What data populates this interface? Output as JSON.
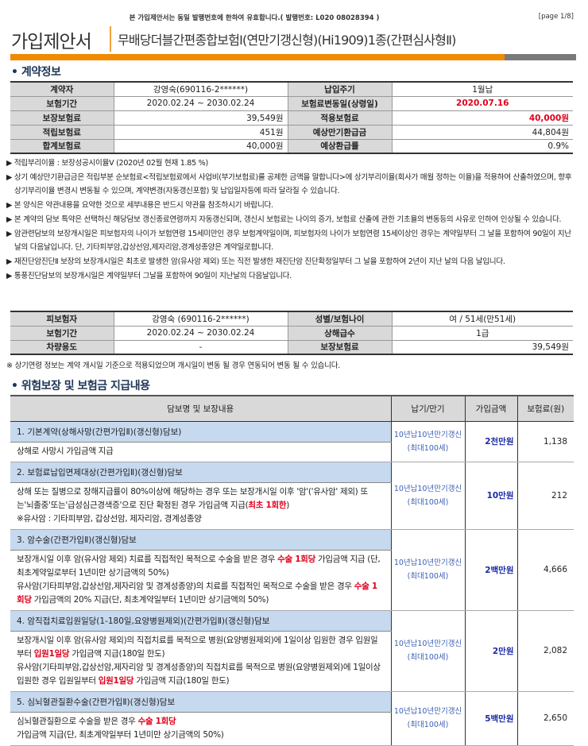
{
  "header": {
    "notice": "본 가입제안서는 동일 발행번호에 한하여 유효합니다.( 발행번호: L020 08028394 )",
    "page": "[page 1/8]",
    "doc_title": "가입제안서",
    "product": "무배당더블간편종합보험Ⅰ(연만기갱신형)(Hi1909)1종(간편심사형Ⅱ)"
  },
  "colors": {
    "accent_orange": "#f08a00",
    "gray_bar": "#7a7a7a",
    "highlight_red": "#e0001b",
    "title_row_blue": "#c6d9ef",
    "amount_blue": "#1b2aa6"
  },
  "contract": {
    "section_title": "• 계약정보",
    "rows": [
      {
        "l1": "계약자",
        "v1": "강영숙(690116-2******)",
        "l2": "납입주기",
        "v2": "1월납"
      },
      {
        "l1": "보험기간",
        "v1": "2020.02.24 ~ 2030.02.24",
        "l2": "보험료변동일(상령일)",
        "v2": "2020.07.16"
      },
      {
        "l1": "보장보험료",
        "v1": "39,549원",
        "l2": "적용보험료",
        "v2": "40,000원"
      },
      {
        "l1": "적립보험료",
        "v1": "451원",
        "l2": "예상만기환급금",
        "v2": "44,804원"
      },
      {
        "l1": "합계보험료",
        "v1": "40,000원",
        "l2": "예상환급률",
        "v2": "0.9%"
      }
    ]
  },
  "notes": [
    "▶ 적립부리이율 : 보장성공시이율Ⅴ (2020년 02월 현재 1.85 %)",
    "▶ 상기 예상만기환급금은 적립부분 순보험료<적립보험료에서 사업비(부가보험료)를 공제한 금액을 말합니다>에 상기부리이율(회사가 매월 정하는 이율)을 적용하여 산출하였으며, 향후 상기부리이율 변경시 변동될 수 있으며, 계약변경(자동갱신포함) 및 납입일자등에 따라 달라질 수 있습니다.",
    "▶ 본 양식은 약관내용을 요약한 것으로 세부내용은 반드시 약관을 참조하시기 바랍니다.",
    "▶ 본 계약의 담보 특약은 선택하신 해당담보 갱신종료연령까지 자동갱신되며, 갱신시 보험료는 나이의 증가, 보험료 산출에 관한 기초율의 변동등의 사유로 인하여 인상될 수 있습니다.",
    "▶ 암관련담보의 보장개시일은 피보험자의 나이가 보험연령 15세미만인 경우 보험계약일이며, 피보험자의 나이가 보험연령 15세이상인 경우는 계약일부터 그 날을 포함하여 90일이 지난날의 다음날입니다. 단, 기타피부암,갑상선암,제자리암,경계성종양은 계약일로합니다.",
    "▶ 재진단암진단Ⅱ 보장의 보장개시일은 최초로 발생한 암(유사암 제외) 또는 직전 발생한 재진단암 진단확정일부터 그 날을 포함하여 2년이 지난 날의 다음 날입니다.",
    "▶ 통풍진단담보의 보장개시일은 계약일부터 그날을 포함하여 90일이 지난날의 다음날입니다."
  ],
  "insured": {
    "rows": [
      {
        "l1": "피보험자",
        "v1": "강영숙 (690116-2******)",
        "l2": "성별/보험나이",
        "v2": "여 / 51세(만51세)"
      },
      {
        "l1": "보험기간",
        "v1": "2020.02.24 ~ 2030.02.24",
        "l2": "상해급수",
        "v2": "1급"
      },
      {
        "l1": "차량용도",
        "v1": "-",
        "l2": "보장보험료",
        "v2": "39,549원"
      }
    ],
    "note": "※ 상기연령 정보는 계약 개시일 기준으로 적용되었으며 개시일이 변동 될 경우 연동되어 변동 될 수 있습니다."
  },
  "coverage": {
    "section_title": "• 위험보장 및 보험금 지급내용",
    "headers": [
      "담보명 및 보장내용",
      "납기/만기",
      "가입금액",
      "보험료(원)"
    ],
    "items": [
      {
        "title": "1.  기본계약(상해사망(간편가입Ⅱ)(갱신형)담보)",
        "term": "10년납10년만기갱신(최대100세)",
        "amount": "2천만원",
        "premium": "1,138",
        "desc": [
          [
            {
              "t": "상해로 사망시 가입금액 지급"
            }
          ]
        ]
      },
      {
        "title": "2.  보험료납입면제대상(간편가입Ⅱ)(갱신형)담보",
        "term": "10년납10년만기갱신(최대100세)",
        "amount": "10만원",
        "premium": "212",
        "desc": [
          [
            {
              "t": "상해 또는 질병으로 장해지급률이 80%이상에 해당하는 경우 또는 보장개시일 이후 '암'('유사암' 제외) 또는'뇌졸중'또는'급성심근경색증'으로 진단 확정된 경우 가입금액 지급("
            },
            {
              "t": "최초 1회한",
              "em": true
            },
            {
              "t": ")"
            }
          ],
          [
            {
              "t": "※유사암 : 기타피부암, 갑상선암, 제자리암, 경계성종양"
            }
          ]
        ]
      },
      {
        "title": "3.  암수술(간편가입Ⅱ)(갱신형)담보",
        "term": "10년납10년만기갱신(최대100세)",
        "amount": "2백만원",
        "premium": "4,666",
        "desc": [
          [
            {
              "t": "보장개시일 이후 암(유사암 제외) 치료를 직접적인 목적으로 수술을 받은 경우 "
            },
            {
              "t": "수술 1회당",
              "em": true
            },
            {
              "t": " 가입금액 지급 (단, 최초계약일로부터 1년미만 상기금액의 50%)"
            }
          ],
          [
            {
              "t": "유사암(기타피부암,갑상선암,제자리암 및 경계성종양)의 치료를 직접적인 목적으로 수술을 받은 경우 "
            },
            {
              "t": "수술 1회당",
              "em": true
            },
            {
              "t": " 가입금액의 20% 지급(단, 최초계약일부터 1년미만 상기금액의 50%)"
            }
          ]
        ]
      },
      {
        "title": "4.  암직접치료입원일당(1-180일,요양병원제외)(간편가입Ⅱ)(갱신형)담보",
        "term": "10년납10년만기갱신(최대100세)",
        "amount": "2만원",
        "premium": "2,082",
        "desc": [
          [
            {
              "t": "보장개시일 이후 암(유사암 제외)의 직접치료를 목적으로 병원(요양병원제외)에 1일이상 입원한 경우 입원일부터 "
            },
            {
              "t": "입원1일당",
              "em": true
            },
            {
              "t": " 가입금액 지급(180일 한도)"
            }
          ],
          [
            {
              "t": "유사암(기타피부암,갑상선암,제자리암 및 경계성종양)의 직접치료를 목적으로 병원(요양병원제외)에 1일이상 입원한 경우 입원일부터 "
            },
            {
              "t": "입원1일당",
              "em": true
            },
            {
              "t": " 가입금액 지급(180일 한도)"
            }
          ]
        ]
      },
      {
        "title": "5.  심뇌혈관질환수술(간편가입Ⅱ)(갱신형)담보",
        "term": "10년납10년만기갱신(최대100세)",
        "amount": "5백만원",
        "premium": "2,650",
        "desc": [
          [
            {
              "t": "심뇌혈관질환으로 수술을 받은 경우 "
            },
            {
              "t": "수술 1회당",
              "em": true
            }
          ],
          [
            {
              "t": "가입금액 지급(단, 최초계약일부터 1년미만 상기금액의 50%)"
            }
          ]
        ]
      }
    ]
  }
}
